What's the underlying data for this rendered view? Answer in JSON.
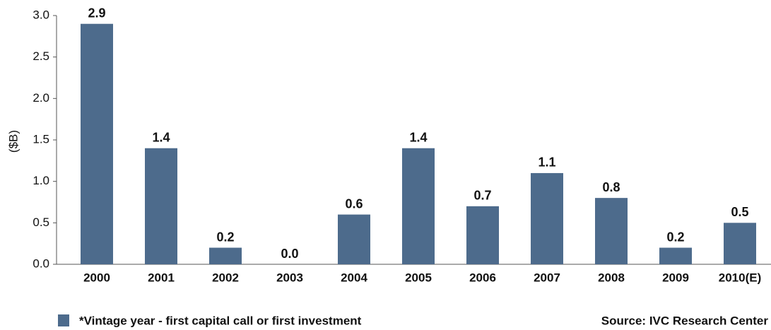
{
  "chart_data": {
    "type": "bar",
    "y_label": "($B)",
    "categories": [
      "2000",
      "2001",
      "2002",
      "2003",
      "2004",
      "2005",
      "2006",
      "2007",
      "2008",
      "2009",
      "2010(E)"
    ],
    "series": [
      {
        "name": "*Vintage year - first capital call or first investment",
        "color": "#4d6b8c",
        "values": [
          2.9,
          1.4,
          0.2,
          0.0,
          0.6,
          1.4,
          0.7,
          1.1,
          0.8,
          0.2,
          0.5
        ],
        "value_labels": [
          "2.9",
          "1.4",
          "0.2",
          "0.0",
          "0.6",
          "1.4",
          "0.7",
          "1.1",
          "0.8",
          "0.2",
          "0.5"
        ]
      }
    ],
    "ylim": [
      0,
      3
    ],
    "yticks": [
      {
        "value": 0,
        "label": "0.0"
      },
      0.5,
      {
        "value": 1,
        "label": "1.0"
      },
      1.5,
      {
        "value": 2,
        "label": "2.0"
      },
      2.5,
      {
        "value": 3,
        "label": "3.0"
      }
    ],
    "source": "Source: IVC Research Center",
    "grid": false
  }
}
